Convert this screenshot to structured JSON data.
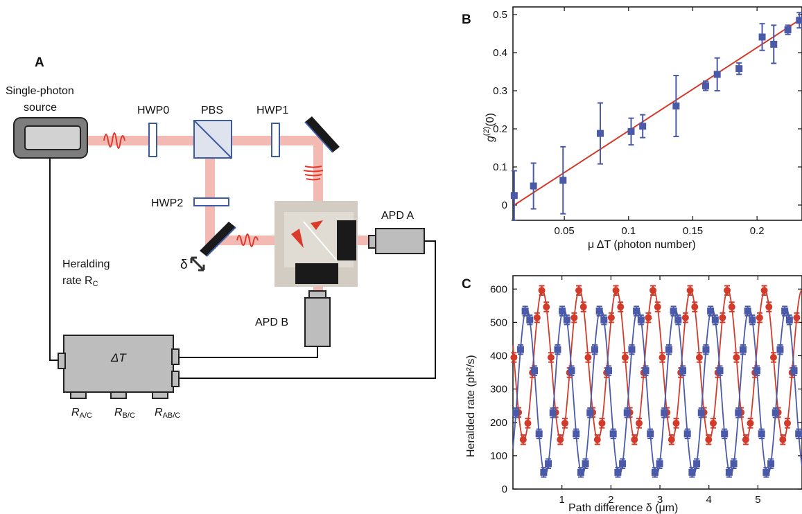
{
  "panel_a": {
    "letter": "A",
    "source_label_1": "Single-photon",
    "source_label_2": "source",
    "hwp0": "HWP0",
    "pbs": "PBS",
    "hwp1": "HWP1",
    "hwp2": "HWP2",
    "delta": "δ",
    "apd_a": "APD A",
    "apd_b": "APD B",
    "heralding_1": "Heralding",
    "heralding_2": "rate R",
    "heralding_sub": "C",
    "counter": "ΔT",
    "r_ac": "R",
    "r_ac_sub": "A/C",
    "r_bc": "R",
    "r_bc_sub": "B/C",
    "r_abc": "R",
    "r_abc_sub": "AB/C",
    "colors": {
      "beam": "#f3b9b3",
      "pulse": "#e0392b",
      "optic": "#3b5ba5",
      "box": "#bdbdbd"
    }
  },
  "chart_data": [
    {
      "panel": "B",
      "type": "scatter",
      "title": "",
      "xlabel": "μ ΔT  (photon number)",
      "ylabel": "g(2)(0)",
      "xlim": [
        0.01,
        0.235
      ],
      "ylim": [
        -0.04,
        0.52
      ],
      "xticks": [
        "0.05",
        "0.1",
        "0.15",
        "0.2"
      ],
      "yticks": [
        "0",
        "0.1",
        "0.2",
        "0.3",
        "0.4",
        "0.5"
      ],
      "xtick_values": [
        0.05,
        0.1,
        0.15,
        0.2
      ],
      "ytick_values": [
        0,
        0.1,
        0.2,
        0.3,
        0.4,
        0.5
      ],
      "points": [
        {
          "x": 0.011,
          "y": 0.025,
          "err": 0.065
        },
        {
          "x": 0.026,
          "y": 0.05,
          "err": 0.06
        },
        {
          "x": 0.049,
          "y": 0.065,
          "err": 0.088
        },
        {
          "x": 0.078,
          "y": 0.188,
          "err": 0.08
        },
        {
          "x": 0.102,
          "y": 0.193,
          "err": 0.035
        },
        {
          "x": 0.111,
          "y": 0.207,
          "err": 0.03
        },
        {
          "x": 0.137,
          "y": 0.26,
          "err": 0.08
        },
        {
          "x": 0.16,
          "y": 0.313,
          "err": 0.012
        },
        {
          "x": 0.169,
          "y": 0.343,
          "err": 0.043
        },
        {
          "x": 0.186,
          "y": 0.358,
          "err": 0.015
        },
        {
          "x": 0.204,
          "y": 0.441,
          "err": 0.035
        },
        {
          "x": 0.213,
          "y": 0.422,
          "err": 0.05
        },
        {
          "x": 0.224,
          "y": 0.46,
          "err": 0.012
        },
        {
          "x": 0.233,
          "y": 0.485,
          "err": 0.02
        }
      ],
      "fit_line": {
        "x": [
          0.011,
          0.235
        ],
        "y": [
          0.0,
          0.49
        ]
      },
      "colors": {
        "points": "#4a5aa8",
        "fit": "#d23a2a"
      }
    },
    {
      "panel": "C",
      "type": "scatter",
      "title": "",
      "xlabel": "Path difference  δ  (μm)",
      "ylabel": "Heralded rate (ph²/s)",
      "xlim": [
        0,
        5.9
      ],
      "ylim": [
        0,
        640
      ],
      "xticks": [
        "1",
        "2",
        "3",
        "4",
        "5"
      ],
      "yticks": [
        "0",
        "100",
        "200",
        "300",
        "400",
        "500",
        "600"
      ],
      "xtick_values": [
        1,
        2,
        3,
        4,
        5
      ],
      "ytick_values": [
        0,
        100,
        200,
        300,
        400,
        500,
        600
      ],
      "series": [
        {
          "marker": "circle",
          "color": "#d23a2a",
          "mean": 372,
          "amp": 225,
          "period": 0.757,
          "phase": 0.6,
          "err": 14
        },
        {
          "marker": "square",
          "color": "#4a5aa8",
          "mean": 292,
          "amp": 250,
          "period": 0.757,
          "phase": 0.28,
          "err": 14
        }
      ]
    }
  ]
}
